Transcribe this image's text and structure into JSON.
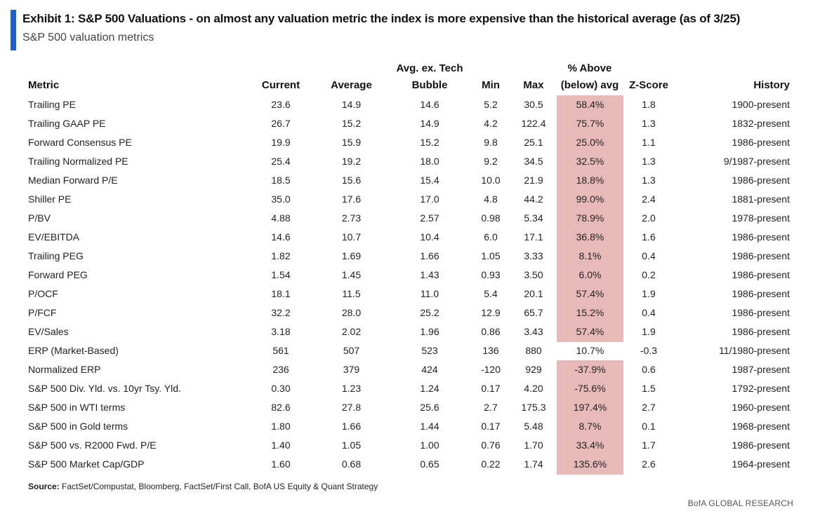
{
  "title": "Exhibit 1: S&P 500 Valuations - on almost any valuation metric the index is more expensive than the historical average (as of 3/25)",
  "subtitle": "S&P 500 valuation metrics",
  "columns": {
    "metric": "Metric",
    "current": "Current",
    "average": "Average",
    "avg_ex_tech_line1": "Avg. ex. Tech",
    "avg_ex_tech_line2": "Bubble",
    "min": "Min",
    "max": "Max",
    "pct_line1": "% Above",
    "pct_line2": "(below) avg",
    "zscore": "Z-Score",
    "history": "History"
  },
  "highlight_color": "#e8b9b9",
  "accent_color": "#1a5fd1",
  "rows": [
    {
      "metric": "Trailing PE",
      "current": "23.6",
      "average": "14.9",
      "avg_ex_tech": "14.6",
      "min": "5.2",
      "max": "30.5",
      "pct": "58.4%",
      "z": "1.8",
      "history": "1900-present",
      "highlight": true
    },
    {
      "metric": "Trailing GAAP PE",
      "current": "26.7",
      "average": "15.2",
      "avg_ex_tech": "14.9",
      "min": "4.2",
      "max": "122.4",
      "pct": "75.7%",
      "z": "1.3",
      "history": "1832-present",
      "highlight": true
    },
    {
      "metric": "Forward Consensus PE",
      "current": "19.9",
      "average": "15.9",
      "avg_ex_tech": "15.2",
      "min": "9.8",
      "max": "25.1",
      "pct": "25.0%",
      "z": "1.1",
      "history": "1986-present",
      "highlight": true
    },
    {
      "metric": "Trailing Normalized PE",
      "current": "25.4",
      "average": "19.2",
      "avg_ex_tech": "18.0",
      "min": "9.2",
      "max": "34.5",
      "pct": "32.5%",
      "z": "1.3",
      "history": "9/1987-present",
      "highlight": true
    },
    {
      "metric": "Median Forward P/E",
      "current": "18.5",
      "average": "15.6",
      "avg_ex_tech": "15.4",
      "min": "10.0",
      "max": "21.9",
      "pct": "18.8%",
      "z": "1.3",
      "history": "1986-present",
      "highlight": true
    },
    {
      "metric": "Shiller PE",
      "current": "35.0",
      "average": "17.6",
      "avg_ex_tech": "17.0",
      "min": "4.8",
      "max": "44.2",
      "pct": "99.0%",
      "z": "2.4",
      "history": "1881-present",
      "highlight": true
    },
    {
      "metric": "P/BV",
      "current": "4.88",
      "average": "2.73",
      "avg_ex_tech": "2.57",
      "min": "0.98",
      "max": "5.34",
      "pct": "78.9%",
      "z": "2.0",
      "history": "1978-present",
      "highlight": true
    },
    {
      "metric": "EV/EBITDA",
      "current": "14.6",
      "average": "10.7",
      "avg_ex_tech": "10.4",
      "min": "6.0",
      "max": "17.1",
      "pct": "36.8%",
      "z": "1.6",
      "history": "1986-present",
      "highlight": true
    },
    {
      "metric": "Trailing PEG",
      "current": "1.82",
      "average": "1.69",
      "avg_ex_tech": "1.66",
      "min": "1.05",
      "max": "3.33",
      "pct": "8.1%",
      "z": "0.4",
      "history": "1986-present",
      "highlight": true
    },
    {
      "metric": "Forward PEG",
      "current": "1.54",
      "average": "1.45",
      "avg_ex_tech": "1.43",
      "min": "0.93",
      "max": "3.50",
      "pct": "6.0%",
      "z": "0.2",
      "history": "1986-present",
      "highlight": true
    },
    {
      "metric": "P/OCF",
      "current": "18.1",
      "average": "11.5",
      "avg_ex_tech": "11.0",
      "min": "5.4",
      "max": "20.1",
      "pct": "57.4%",
      "z": "1.9",
      "history": "1986-present",
      "highlight": true
    },
    {
      "metric": "P/FCF",
      "current": "32.2",
      "average": "28.0",
      "avg_ex_tech": "25.2",
      "min": "12.9",
      "max": "65.7",
      "pct": "15.2%",
      "z": "0.4",
      "history": "1986-present",
      "highlight": true
    },
    {
      "metric": "EV/Sales",
      "current": "3.18",
      "average": "2.02",
      "avg_ex_tech": "1.96",
      "min": "0.86",
      "max": "3.43",
      "pct": "57.4%",
      "z": "1.9",
      "history": "1986-present",
      "highlight": true
    },
    {
      "metric": "ERP (Market-Based)",
      "current": "561",
      "average": "507",
      "avg_ex_tech": "523",
      "min": "136",
      "max": "880",
      "pct": "10.7%",
      "z": "-0.3",
      "history": "11/1980-present",
      "highlight": false
    },
    {
      "metric": "Normalized ERP",
      "current": "236",
      "average": "379",
      "avg_ex_tech": "424",
      "min": "-120",
      "max": "929",
      "pct": "-37.9%",
      "z": "0.6",
      "history": "1987-present",
      "highlight": true
    },
    {
      "metric": "S&P 500 Div. Yld. vs. 10yr Tsy. Yld.",
      "current": "0.30",
      "average": "1.23",
      "avg_ex_tech": "1.24",
      "min": "0.17",
      "max": "4.20",
      "pct": "-75.6%",
      "z": "1.5",
      "history": "1792-present",
      "highlight": true
    },
    {
      "metric": "S&P 500 in WTI terms",
      "current": "82.6",
      "average": "27.8",
      "avg_ex_tech": "25.6",
      "min": "2.7",
      "max": "175.3",
      "pct": "197.4%",
      "z": "2.7",
      "history": "1960-present",
      "highlight": true
    },
    {
      "metric": "S&P 500 in Gold terms",
      "current": "1.80",
      "average": "1.66",
      "avg_ex_tech": "1.44",
      "min": "0.17",
      "max": "5.48",
      "pct": "8.7%",
      "z": "0.1",
      "history": "1968-present",
      "highlight": true
    },
    {
      "metric": "S&P 500 vs. R2000 Fwd. P/E",
      "current": "1.40",
      "average": "1.05",
      "avg_ex_tech": "1.00",
      "min": "0.76",
      "max": "1.70",
      "pct": "33.4%",
      "z": "1.7",
      "history": "1986-present",
      "highlight": true
    },
    {
      "metric": "S&P 500 Market Cap/GDP",
      "current": "1.60",
      "average": "0.68",
      "avg_ex_tech": "0.65",
      "min": "0.22",
      "max": "1.74",
      "pct": "135.6%",
      "z": "2.6",
      "history": "1964-present",
      "highlight": true
    }
  ],
  "source_label": "Source:",
  "source_text": " FactSet/Compustat, Bloomberg, FactSet/First Call, BofA US Equity & Quant Strategy",
  "brand": "BofA GLOBAL RESEARCH"
}
